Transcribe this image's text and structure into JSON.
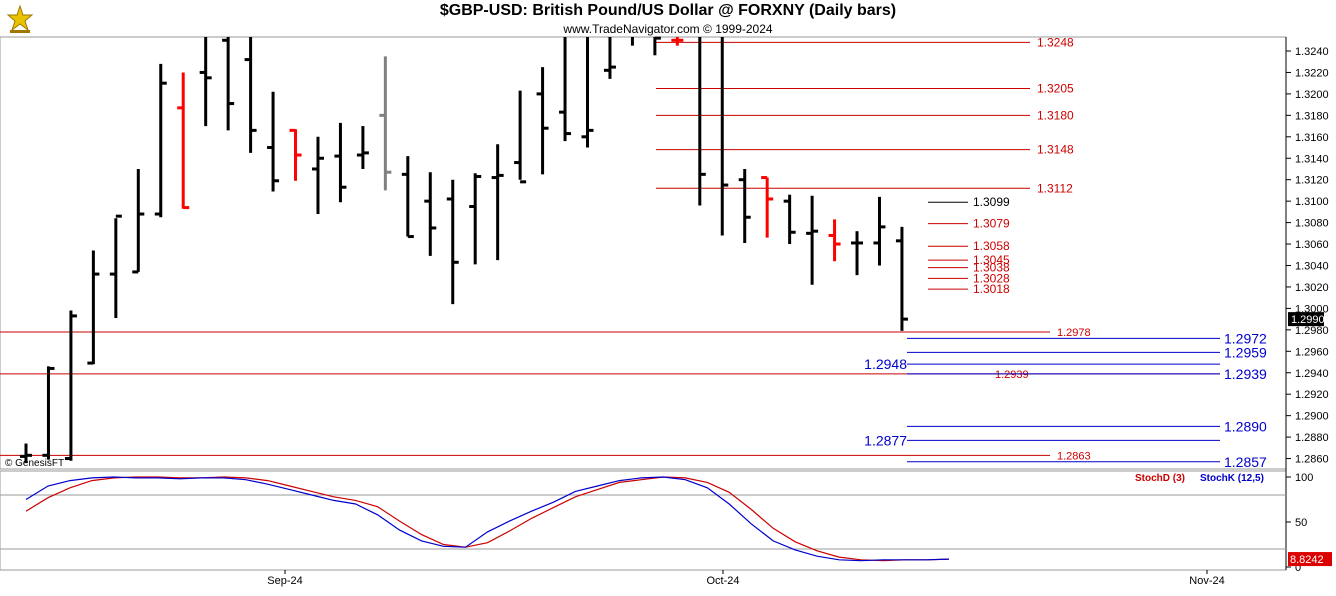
{
  "header": {
    "title": "$GBP-USD:  British Pound/US Dollar @ FORXNY  (Daily bars)",
    "subtitle": "www.TradeNavigator.com © 1999-2024",
    "logo_icon": "trade-navigator-logo-icon",
    "copyright": "© GenesisFT"
  },
  "colors": {
    "bar": "#000000",
    "bar_down": "#ff0000",
    "bar_gray": "#808080",
    "level_red": "#cc0000",
    "level_blue": "#0000cc",
    "stoch_d": "#cc0000",
    "stoch_k": "#0000cc",
    "last_price_bg": "#000000",
    "stoch_last_bg": "#dd0000"
  },
  "chart_data": [
    {
      "type": "ohlc",
      "title": "$GBP-USD:  British Pound/US Dollar @ FORXNY  (Daily bars)",
      "ylim": [
        1.2846,
        1.3262
      ],
      "yticks": [
        "1.3240",
        "1.3220",
        "1.3200",
        "1.3180",
        "1.3160",
        "1.3140",
        "1.3120",
        "1.3100",
        "1.3080",
        "1.3060",
        "1.3040",
        "1.3020",
        "1.3000",
        "1.2980",
        "1.2960",
        "1.2940",
        "1.2920",
        "1.2900",
        "1.2880",
        "1.2860"
      ],
      "xticks": [
        "Sep-24",
        "Oct-24",
        "Nov-24"
      ],
      "last_price": "1.2990",
      "bars": [
        {
          "o": 1.2862,
          "h": 1.2874,
          "l": 1.2856,
          "c": 1.2863,
          "color": "black"
        },
        {
          "o": 1.2863,
          "h": 1.2946,
          "l": 1.2859,
          "c": 1.2944,
          "color": "black"
        },
        {
          "o": 1.286,
          "h": 1.2998,
          "l": 1.2858,
          "c": 1.2993,
          "color": "black"
        },
        {
          "o": 1.2949,
          "h": 1.3054,
          "l": 1.2948,
          "c": 1.3032,
          "color": "black"
        },
        {
          "o": 1.3032,
          "h": 1.3084,
          "l": 1.2991,
          "c": 1.3086,
          "color": "black"
        },
        {
          "o": 1.3034,
          "h": 1.313,
          "l": 1.3034,
          "c": 1.3088,
          "color": "black"
        },
        {
          "o": 1.3088,
          "h": 1.3228,
          "l": 1.3085,
          "c": 1.321,
          "color": "black"
        },
        {
          "o": 1.3187,
          "h": 1.322,
          "l": 1.3093,
          "c": 1.3094,
          "color": "red"
        },
        {
          "o": 1.322,
          "h": 1.3255,
          "l": 1.317,
          "c": 1.3215,
          "color": "black"
        },
        {
          "o": 1.325,
          "h": 1.3255,
          "l": 1.3166,
          "c": 1.3191,
          "color": "black"
        },
        {
          "o": 1.3232,
          "h": 1.3255,
          "l": 1.3145,
          "c": 1.3166,
          "color": "black"
        },
        {
          "o": 1.315,
          "h": 1.3202,
          "l": 1.3109,
          "c": 1.3119,
          "color": "black"
        },
        {
          "o": 1.3166,
          "h": 1.3167,
          "l": 1.3119,
          "c": 1.3143,
          "color": "red"
        },
        {
          "o": 1.313,
          "h": 1.316,
          "l": 1.3088,
          "c": 1.314,
          "color": "black"
        },
        {
          "o": 1.3142,
          "h": 1.3173,
          "l": 1.3099,
          "c": 1.3113,
          "color": "black"
        },
        {
          "o": 1.3143,
          "h": 1.317,
          "l": 1.313,
          "c": 1.3145,
          "color": "black"
        },
        {
          "o": 1.318,
          "h": 1.3235,
          "l": 1.311,
          "c": 1.3127,
          "color": "gray"
        },
        {
          "o": 1.3125,
          "h": 1.3142,
          "l": 1.3067,
          "c": 1.3067,
          "color": "black"
        },
        {
          "o": 1.31,
          "h": 1.3127,
          "l": 1.3049,
          "c": 1.3075,
          "color": "black"
        },
        {
          "o": 1.3102,
          "h": 1.312,
          "l": 1.3004,
          "c": 1.3043,
          "color": "black"
        },
        {
          "o": 1.3095,
          "h": 1.3126,
          "l": 1.3041,
          "c": 1.3123,
          "color": "black"
        },
        {
          "o": 1.3122,
          "h": 1.3153,
          "l": 1.3045,
          "c": 1.3124,
          "color": "black"
        },
        {
          "o": 1.3136,
          "h": 1.3203,
          "l": 1.312,
          "c": 1.3118,
          "color": "black"
        },
        {
          "o": 1.32,
          "h": 1.3225,
          "l": 1.3125,
          "c": 1.3168,
          "color": "black"
        },
        {
          "o": 1.3183,
          "h": 1.3255,
          "l": 1.3156,
          "c": 1.3163,
          "color": "black"
        },
        {
          "o": 1.316,
          "h": 1.3255,
          "l": 1.315,
          "c": 1.3166,
          "color": "black"
        },
        {
          "o": 1.3222,
          "h": 1.3255,
          "l": 1.3214,
          "c": 1.3225,
          "color": "black"
        },
        {
          "o": 1.326,
          "h": 1.3262,
          "l": 1.3245,
          "c": 1.3258,
          "color": "black"
        },
        {
          "o": 1.326,
          "h": 1.3262,
          "l": 1.3236,
          "c": 1.3252,
          "color": "black"
        },
        {
          "o": 1.325,
          "h": 1.3255,
          "l": 1.3245,
          "c": 1.325,
          "color": "red"
        },
        {
          "o": 1.3255,
          "h": 1.3255,
          "l": 1.3096,
          "c": 1.3125,
          "color": "black"
        },
        {
          "o": 1.3255,
          "h": 1.3255,
          "l": 1.3068,
          "c": 1.3115,
          "color": "black"
        },
        {
          "o": 1.312,
          "h": 1.313,
          "l": 1.3061,
          "c": 1.3085,
          "color": "black"
        },
        {
          "o": 1.3122,
          "h": 1.3122,
          "l": 1.3066,
          "c": 1.3102,
          "color": "red"
        },
        {
          "o": 1.31,
          "h": 1.3106,
          "l": 1.306,
          "c": 1.3071,
          "color": "black"
        },
        {
          "o": 1.307,
          "h": 1.3105,
          "l": 1.3022,
          "c": 1.3072,
          "color": "black"
        },
        {
          "o": 1.3068,
          "h": 1.3083,
          "l": 1.3044,
          "c": 1.306,
          "color": "red"
        },
        {
          "o": 1.3061,
          "h": 1.3072,
          "l": 1.3031,
          "c": 1.3061,
          "color": "black"
        },
        {
          "o": 1.3061,
          "h": 1.3104,
          "l": 1.304,
          "c": 1.3076,
          "color": "black"
        },
        {
          "o": 1.3063,
          "h": 1.3076,
          "l": 1.2979,
          "c": 1.299,
          "color": "black"
        }
      ],
      "levels_red": [
        {
          "value": 1.3248,
          "label": "1.3248"
        },
        {
          "value": 1.3205,
          "label": "1.3205"
        },
        {
          "value": 1.318,
          "label": "1.3180"
        },
        {
          "value": 1.3148,
          "label": "1.3148"
        },
        {
          "value": 1.3112,
          "label": "1.3112"
        },
        {
          "value": 1.3079,
          "label": "1.3079"
        },
        {
          "value": 1.3058,
          "label": "1.3058"
        },
        {
          "value": 1.3045,
          "label": "1.3045"
        },
        {
          "value": 1.3038,
          "label": "1.3038"
        },
        {
          "value": 1.3028,
          "label": "1.3028"
        },
        {
          "value": 1.3018,
          "label": "1.3018"
        },
        {
          "value": 1.2978,
          "label": "1.2978"
        },
        {
          "value": 1.2939,
          "label": "1.2939"
        },
        {
          "value": 1.2863,
          "label": "1.2863"
        }
      ],
      "levels_black": [
        {
          "value": 1.3099,
          "label": "1.3099"
        }
      ],
      "levels_blue": [
        {
          "value": 1.2972,
          "label": "1.2972"
        },
        {
          "value": 1.2959,
          "label": "1.2959"
        },
        {
          "value": 1.2948,
          "label": "1.2948"
        },
        {
          "value": 1.2939,
          "label": "1.2939"
        },
        {
          "value": 1.289,
          "label": "1.2890"
        },
        {
          "value": 1.2877,
          "label": "1.2877"
        },
        {
          "value": 1.2857,
          "label": "1.2857"
        }
      ]
    },
    {
      "type": "line",
      "title": "",
      "ylim": [
        0,
        100
      ],
      "yticks": [
        "100",
        "50",
        "0"
      ],
      "guide_levels": [
        80,
        20
      ],
      "last_value": "8.8242",
      "series": [
        {
          "name": "StochD (3)",
          "values": [
            62,
            77,
            88,
            96,
            99,
            100,
            100,
            99,
            99,
            100,
            99,
            96,
            90,
            84,
            78,
            74,
            67,
            51,
            36,
            25,
            22,
            27,
            40,
            54,
            66,
            78,
            86,
            94,
            97,
            100,
            99,
            94,
            83,
            64,
            43,
            28,
            18,
            11,
            8,
            7,
            8,
            8,
            8.8242
          ]
        },
        {
          "name": "StochK (12,5)",
          "values": [
            75,
            90,
            96,
            99,
            100,
            99,
            99,
            98,
            99,
            99,
            97,
            92,
            86,
            80,
            74,
            70,
            58,
            41,
            29,
            23,
            22,
            39,
            51,
            62,
            72,
            84,
            90,
            96,
            99,
            100,
            97,
            88,
            70,
            48,
            29,
            19,
            12,
            8,
            7,
            8,
            8,
            8,
            8.8242
          ]
        }
      ]
    }
  ]
}
